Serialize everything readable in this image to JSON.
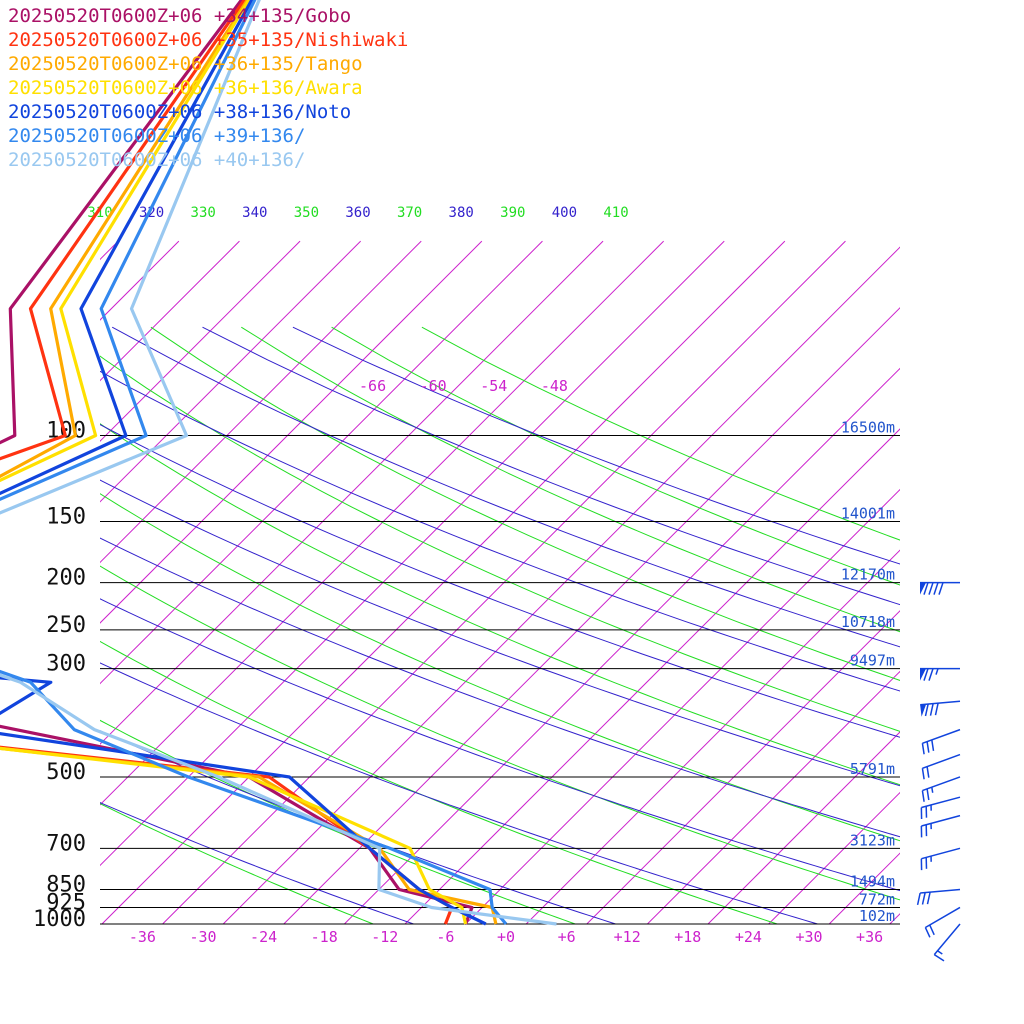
{
  "chart_data": {
    "type": "line",
    "title": "",
    "xlabel": "",
    "ylabel": "",
    "legend_placement": "top-left",
    "pressure_ticks": [
      {
        "p": 100,
        "label": "100",
        "height": "16500m"
      },
      {
        "p": 150,
        "label": "150",
        "height": "14001m"
      },
      {
        "p": 200,
        "label": "200",
        "height": "12170m"
      },
      {
        "p": 250,
        "label": "250",
        "height": "10718m"
      },
      {
        "p": 300,
        "label": "300",
        "height": "9497m"
      },
      {
        "p": 500,
        "label": "500",
        "height": "5791m"
      },
      {
        "p": 700,
        "label": "700",
        "height": "3123m"
      },
      {
        "p": 850,
        "label": "850",
        "height": "1494m"
      },
      {
        "p": 925,
        "label": "925",
        "height": "772m"
      },
      {
        "p": 1000,
        "label": "1000",
        "height": "102m"
      }
    ],
    "temperature_ticks": [
      {
        "t": -36,
        "label": "-36"
      },
      {
        "t": -30,
        "label": "-30"
      },
      {
        "t": -24,
        "label": "-24"
      },
      {
        "t": -18,
        "label": "-18"
      },
      {
        "t": -12,
        "label": "-12"
      },
      {
        "t": -6,
        "label": "-6"
      },
      {
        "t": 0,
        "label": "+0"
      },
      {
        "t": 6,
        "label": "+6"
      },
      {
        "t": 12,
        "label": "+12"
      },
      {
        "t": 18,
        "label": "+18"
      },
      {
        "t": 24,
        "label": "+24"
      },
      {
        "t": 30,
        "label": "+30"
      },
      {
        "t": 36,
        "label": "+36"
      }
    ],
    "upper_isotherm_labels": [
      {
        "t": -66,
        "label": "-66"
      },
      {
        "t": -60,
        "label": "-60"
      },
      {
        "t": -54,
        "label": "-54"
      },
      {
        "t": -48,
        "label": "-48"
      }
    ],
    "theta_labels": [
      {
        "value": 310,
        "label": "310",
        "kind": "theta"
      },
      {
        "value": 320,
        "label": "320",
        "kind": "theta_e"
      },
      {
        "value": 330,
        "label": "330",
        "kind": "theta"
      },
      {
        "value": 340,
        "label": "340",
        "kind": "theta_e"
      },
      {
        "value": 350,
        "label": "350",
        "kind": "theta"
      },
      {
        "value": 360,
        "label": "360",
        "kind": "theta_e"
      },
      {
        "value": 370,
        "label": "370",
        "kind": "theta"
      },
      {
        "value": 380,
        "label": "380",
        "kind": "theta_e"
      },
      {
        "value": 390,
        "label": "390",
        "kind": "theta"
      },
      {
        "value": 400,
        "label": "400",
        "kind": "theta_e"
      },
      {
        "value": 410,
        "label": "410",
        "kind": "theta"
      }
    ],
    "colors": {
      "isotherm": "#cc22cc",
      "dry_adiabat": "#22dd22",
      "moist_adiabat": "#3322cc",
      "isobar": "#000000",
      "height_label": "#2255cc",
      "wind_barb": "#1144dd"
    },
    "series": [
      {
        "name": "20250520T0600Z+06 +34+135/Gobo",
        "color": "#aa1166",
        "points": [
          [
            -119,
            10
          ],
          [
            -110,
            55
          ],
          [
            -97,
            100
          ],
          [
            -103,
            130
          ],
          [
            -104,
            150
          ],
          [
            -105,
            200
          ],
          [
            -94,
            250
          ],
          [
            -76,
            300
          ],
          [
            -88,
            340
          ],
          [
            -40,
            500
          ],
          [
            -21,
            700
          ],
          [
            -14,
            850
          ],
          [
            -5,
            925
          ],
          [
            -4,
            1000
          ]
        ]
      },
      {
        "name": "20250520T0600Z+06 +35+135/Nishiwaki",
        "color": "#ff3311",
        "points": [
          [
            -119,
            10
          ],
          [
            -108,
            55
          ],
          [
            -92,
            100
          ],
          [
            -102,
            130
          ],
          [
            -102,
            150
          ],
          [
            -101,
            200
          ],
          [
            -94,
            250
          ],
          [
            -81,
            300
          ],
          [
            -96,
            380
          ],
          [
            -38,
            500
          ],
          [
            -21,
            700
          ],
          [
            -12,
            850
          ],
          [
            -7,
            925
          ],
          [
            -6,
            1000
          ]
        ]
      },
      {
        "name": "20250520T0600Z+06 +36+135/Tango",
        "color": "#ffaa00",
        "points": [
          [
            -119,
            10
          ],
          [
            -106,
            55
          ],
          [
            -91,
            100
          ],
          [
            -97,
            140
          ],
          [
            -98,
            150
          ],
          [
            -93,
            200
          ],
          [
            -87,
            250
          ],
          [
            -82,
            300
          ],
          [
            -97,
            380
          ],
          [
            -39,
            500
          ],
          [
            -20,
            700
          ],
          [
            -13,
            850
          ],
          [
            -3,
            925
          ],
          [
            -1,
            1000
          ]
        ]
      },
      {
        "name": "20250520T0600Z+06 +36+136/Awara",
        "color": "#ffe000",
        "points": [
          [
            -119,
            10
          ],
          [
            -105,
            55
          ],
          [
            -89,
            100
          ],
          [
            -97,
            140
          ],
          [
            -97,
            150
          ],
          [
            -93,
            200
          ],
          [
            -88,
            250
          ],
          [
            -83,
            300
          ],
          [
            -96,
            380
          ],
          [
            -40,
            500
          ],
          [
            -17,
            700
          ],
          [
            -11,
            850
          ],
          [
            -6,
            925
          ],
          [
            -4,
            1000
          ]
        ]
      },
      {
        "name": "20250520T0600Z+06 +38+136/Noto",
        "color": "#1144dd",
        "points": [
          [
            -119,
            10
          ],
          [
            -103,
            55
          ],
          [
            -86,
            100
          ],
          [
            -96,
            150
          ],
          [
            -95,
            200
          ],
          [
            -90,
            250
          ],
          [
            -86,
            300
          ],
          [
            -69,
            320
          ],
          [
            -72,
            400
          ],
          [
            -36,
            500
          ],
          [
            -21,
            700
          ],
          [
            -12,
            850
          ],
          [
            -7,
            925
          ],
          [
            -2,
            1000
          ]
        ]
      },
      {
        "name": "20250520T0600Z+06 +39+136/",
        "color": "#3388ee",
        "points": [
          [
            -119,
            10
          ],
          [
            -101,
            55
          ],
          [
            -84,
            100
          ],
          [
            -95,
            150
          ],
          [
            -93,
            200
          ],
          [
            -91,
            250
          ],
          [
            -71,
            320
          ],
          [
            -62,
            400
          ],
          [
            -46,
            500
          ],
          [
            -19,
            700
          ],
          [
            -5,
            850
          ],
          [
            -3,
            925
          ],
          [
            0,
            1000
          ]
        ]
      },
      {
        "name": "20250520T0600Z+06 +40+136/",
        "color": "#99c8f0",
        "points": [
          [
            -119,
            10
          ],
          [
            -98,
            55
          ],
          [
            -80,
            100
          ],
          [
            -92,
            150
          ],
          [
            -92,
            200
          ],
          [
            -92,
            250
          ],
          [
            -72,
            320
          ],
          [
            -60,
            400
          ],
          [
            -43,
            500
          ],
          [
            -20,
            700
          ],
          [
            -16,
            850
          ],
          [
            -9,
            925
          ],
          [
            5,
            1000
          ]
        ]
      }
    ],
    "wind_barbs": [
      {
        "p": 200,
        "speed_kt": 90,
        "dir_deg": 270
      },
      {
        "p": 300,
        "speed_kt": 75,
        "dir_deg": 270
      },
      {
        "p": 350,
        "speed_kt": 80,
        "dir_deg": 275
      },
      {
        "p": 400,
        "speed_kt": 30,
        "dir_deg": 290
      },
      {
        "p": 450,
        "speed_kt": 20,
        "dir_deg": 290
      },
      {
        "p": 500,
        "speed_kt": 25,
        "dir_deg": 290
      },
      {
        "p": 550,
        "speed_kt": 25,
        "dir_deg": 285
      },
      {
        "p": 600,
        "speed_kt": 25,
        "dir_deg": 285
      },
      {
        "p": 700,
        "speed_kt": 25,
        "dir_deg": 285
      },
      {
        "p": 850,
        "speed_kt": 30,
        "dir_deg": 275
      },
      {
        "p": 925,
        "speed_kt": 20,
        "dir_deg": 300
      },
      {
        "p": 1000,
        "speed_kt": 15,
        "dir_deg": 320
      }
    ]
  }
}
